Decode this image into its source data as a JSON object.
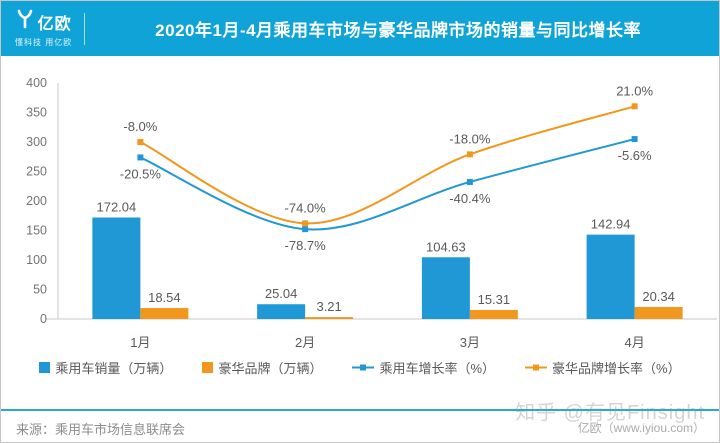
{
  "header": {
    "logo_text": "亿欧",
    "logo_tagline": "懂科技 用亿欧",
    "title": "2020年1月-4月乘用车市场与豪华品牌市场的销量与同比增长率"
  },
  "chart_data": {
    "type": "bar+line combo",
    "title": "2020年1月-4月乘用车市场与豪华品牌市场的销量与同比增长率",
    "categories": [
      "1月",
      "2月",
      "3月",
      "4月"
    ],
    "y_axis": {
      "min": 0,
      "max": 400,
      "step": 50
    },
    "hidden_pct_axis": {
      "min": -151.6,
      "max": 39.9
    },
    "grid": false,
    "legend_position": "bottom",
    "bar_series": [
      {
        "name": "乘用车销量（万辆）",
        "color": "#2098d5",
        "values": [
          172.04,
          25.04,
          104.63,
          142.94
        ]
      },
      {
        "name": "豪华品牌（万辆）",
        "color": "#f2971d",
        "values": [
          18.54,
          3.21,
          15.31,
          20.34
        ]
      }
    ],
    "line_series": [
      {
        "name": "乘用车增长率（%）",
        "color": "#2098d5",
        "values": [
          -20.5,
          -78.7,
          -40.4,
          -5.6
        ],
        "labels": [
          "-20.5%",
          "-78.7%",
          "-40.4%",
          "-5.6%"
        ],
        "label_side": "below"
      },
      {
        "name": "豪华品牌增长率（%）",
        "color": "#f2971d",
        "values": [
          -8.0,
          -74.0,
          -18.0,
          21.0
        ],
        "labels": [
          "-8.0%",
          "-74.0%",
          "-18.0%",
          "21.0%"
        ],
        "label_side": "above"
      }
    ]
  },
  "footer": {
    "source": "来源：乘用车市场信息联席会",
    "watermark": "知乎 @有见Finsight",
    "credit": "亿欧（www.iyiou.com）"
  }
}
